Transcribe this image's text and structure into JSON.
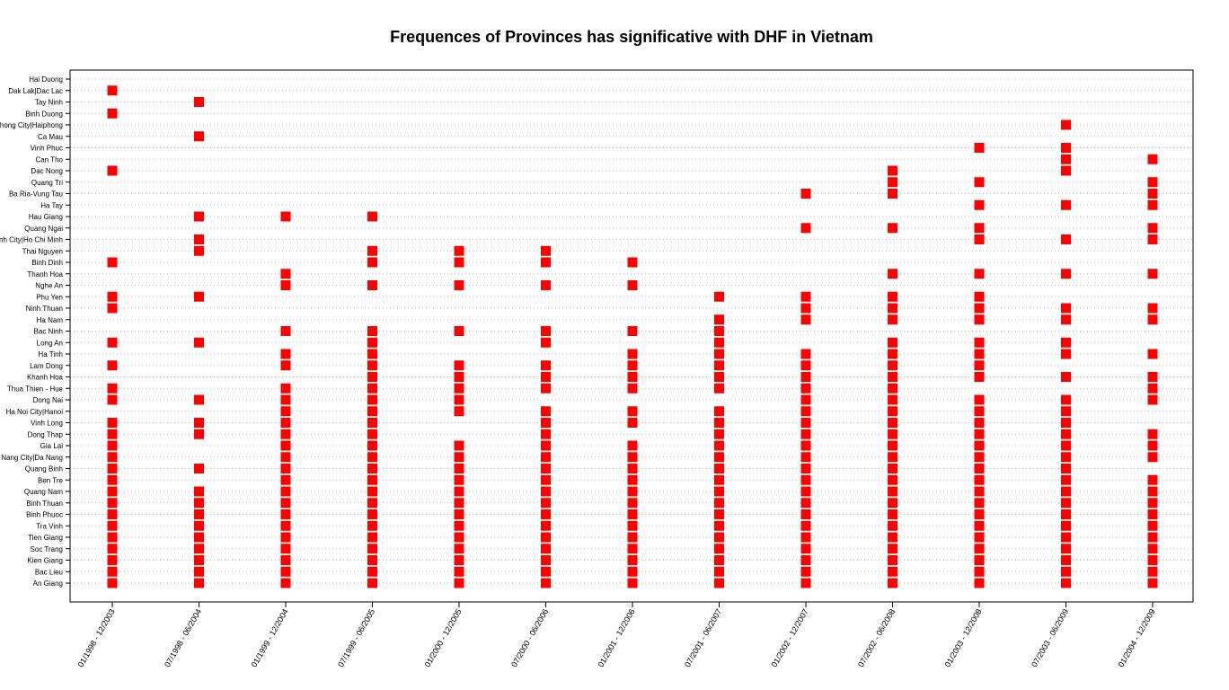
{
  "chart_data": {
    "type": "scatter",
    "title": "Frequences of Provinces has significative with DHF in Vietnam",
    "xlabel": "",
    "ylabel": "",
    "grid": "horizontal dotted",
    "marker": "filled square",
    "marker_color": "#ff0000",
    "x_categories": [
      "01/1998 - 12/2003",
      "07/1998 - 06/2004",
      "01/1999 - 12/2004",
      "07/1999 - 06/2005",
      "01/2000 - 12/2005",
      "07/2000 - 06/2006",
      "01/2001 - 12/2006",
      "07/2001 - 06/2007",
      "01/2002 - 12/2007",
      "07/2002 - 06/2008",
      "01/2003 - 12/2008",
      "07/2003 - 06/2009",
      "01/2004 - 12/2009"
    ],
    "y_categories": [
      "Hai Duong",
      "Dak Lak|Dac Lac",
      "Tay Ninh",
      "Binh Duong",
      "Hai Phong City|Haiphong",
      "Ca Mau",
      "Vinh Phuc",
      "Can Tho",
      "Dac Nong",
      "Quang Tri",
      "Ba Ria-Vung Tau",
      "Ha Tay",
      "Hau Giang",
      "Quang Ngai",
      "Ho Chi Minh City|Ho Chi Minh",
      "Thai Nguyen",
      "Binh Dinh",
      "Thanh Hoa",
      "Nghe An",
      "Phu Yen",
      "Ninh Thuan",
      "Ha Nam",
      "Bac Ninh",
      "Long An",
      "Ha Tinh",
      "Lam Dong",
      "Khanh Hoa",
      "Thua Thien - Hue",
      "Dong Nai",
      "Ha Noi City|Hanoi",
      "Vinh Long",
      "Dong Thap",
      "Gia Lai",
      "Da Nang City|Da Nang",
      "Quang Binh",
      "Ben Tre",
      "Quang Nam",
      "Binh Thuan",
      "Binh Phuoc",
      "Tra Vinh",
      "Tien Giang",
      "Soc Trang",
      "Kien Giang",
      "Bac Lieu",
      "An Giang"
    ],
    "points_by_province": {
      "Hai Duong": [],
      "Dak Lak|Dac Lac": [
        0
      ],
      "Tay Ninh": [
        1
      ],
      "Binh Duong": [
        0
      ],
      "Hai Phong City|Haiphong": [
        11
      ],
      "Ca Mau": [
        1
      ],
      "Vinh Phuc": [
        10,
        11
      ],
      "Can Tho": [
        11,
        12
      ],
      "Dac Nong": [
        0,
        9,
        11
      ],
      "Quang Tri": [
        9,
        10,
        12
      ],
      "Ba Ria-Vung Tau": [
        8,
        9,
        12
      ],
      "Ha Tay": [
        10,
        11,
        12
      ],
      "Hau Giang": [
        1,
        2,
        3
      ],
      "Quang Ngai": [
        8,
        9,
        10,
        12
      ],
      "Ho Chi Minh City|Ho Chi Minh": [
        1,
        10,
        11,
        12
      ],
      "Thai Nguyen": [
        1,
        3,
        4,
        5
      ],
      "Binh Dinh": [
        0,
        3,
        4,
        5,
        6
      ],
      "Thanh Hoa": [
        2,
        9,
        10,
        11,
        12
      ],
      "Nghe An": [
        2,
        3,
        4,
        5,
        6
      ],
      "Phu Yen": [
        0,
        1,
        7,
        8,
        9,
        10
      ],
      "Ninh Thuan": [
        0,
        8,
        9,
        10,
        11,
        12
      ],
      "Ha Nam": [
        7,
        8,
        9,
        10,
        11,
        12
      ],
      "Bac Ninh": [
        2,
        3,
        4,
        5,
        6,
        7
      ],
      "Long An": [
        0,
        1,
        3,
        5,
        7,
        9,
        10,
        11
      ],
      "Ha Tinh": [
        2,
        3,
        6,
        7,
        8,
        9,
        10,
        11,
        12
      ],
      "Lam Dong": [
        0,
        2,
        3,
        4,
        5,
        6,
        7,
        8,
        9,
        10
      ],
      "Khanh Hoa": [
        3,
        4,
        5,
        6,
        7,
        8,
        9,
        10,
        11,
        12
      ],
      "Thua Thien - Hue": [
        0,
        2,
        3,
        4,
        5,
        6,
        7,
        8,
        9,
        12
      ],
      "Dong Nai": [
        0,
        1,
        2,
        3,
        4,
        8,
        9,
        10,
        11,
        12
      ],
      "Ha Noi City|Hanoi": [
        2,
        3,
        4,
        5,
        6,
        7,
        8,
        9,
        10,
        11
      ],
      "Vinh Long": [
        0,
        1,
        2,
        3,
        5,
        6,
        7,
        8,
        9,
        10,
        11
      ],
      "Dong Thap": [
        0,
        1,
        2,
        3,
        5,
        7,
        8,
        9,
        10,
        11,
        12
      ],
      "Gia Lai": [
        0,
        2,
        3,
        4,
        5,
        6,
        7,
        8,
        9,
        10,
        11,
        12
      ],
      "Da Nang City|Da Nang": [
        0,
        2,
        3,
        4,
        5,
        6,
        7,
        8,
        9,
        10,
        11,
        12
      ],
      "Quang Binh": [
        0,
        1,
        2,
        3,
        4,
        5,
        6,
        7,
        8,
        9,
        10,
        11
      ],
      "Ben Tre": [
        0,
        2,
        3,
        4,
        5,
        6,
        7,
        8,
        9,
        10,
        11,
        12
      ],
      "Quang Nam": [
        0,
        1,
        2,
        3,
        4,
        5,
        6,
        7,
        8,
        9,
        10,
        11,
        12
      ],
      "Binh Thuan": [
        0,
        1,
        2,
        3,
        4,
        5,
        6,
        7,
        8,
        9,
        10,
        11,
        12
      ],
      "Binh Phuoc": [
        0,
        1,
        2,
        3,
        4,
        5,
        6,
        7,
        8,
        9,
        10,
        11,
        12
      ],
      "Tra Vinh": [
        0,
        1,
        2,
        3,
        4,
        5,
        6,
        7,
        8,
        9,
        10,
        11,
        12
      ],
      "Tien Giang": [
        0,
        1,
        2,
        3,
        4,
        5,
        6,
        7,
        8,
        9,
        10,
        11,
        12
      ],
      "Soc Trang": [
        0,
        1,
        2,
        3,
        4,
        5,
        6,
        7,
        8,
        9,
        10,
        11,
        12
      ],
      "Kien Giang": [
        0,
        1,
        2,
        3,
        4,
        5,
        6,
        7,
        8,
        9,
        10,
        11,
        12
      ],
      "Bac Lieu": [
        0,
        1,
        2,
        3,
        4,
        5,
        6,
        7,
        8,
        9,
        10,
        11,
        12
      ],
      "An Giang": [
        0,
        1,
        2,
        3,
        4,
        5,
        6,
        7,
        8,
        9,
        10,
        11,
        12
      ]
    }
  }
}
